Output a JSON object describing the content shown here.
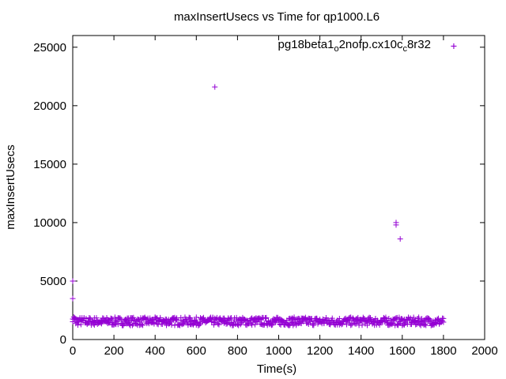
{
  "chart_data": {
    "type": "scatter",
    "title": "maxInsertUsecs vs Time for qp1000.L6",
    "xlabel": "Time(s)",
    "ylabel": "maxInsertUsecs",
    "xlim": [
      0,
      2000
    ],
    "ylim": [
      0,
      26000
    ],
    "xticks": [
      0,
      200,
      400,
      600,
      800,
      1000,
      1200,
      1400,
      1600,
      1800,
      2000
    ],
    "yticks": [
      0,
      5000,
      10000,
      15000,
      20000,
      25000
    ],
    "grid": false,
    "legend_position": "top-right",
    "marker": "plus",
    "color": "#9400d3",
    "series": [
      {
        "name": "pg18beta1_o2nofp.cx10c_c8r32",
        "legend_parts": [
          "pg18beta1",
          "o",
          "2nofp.cx10c",
          "c",
          "8r32"
        ],
        "baseline_band": {
          "x_range": [
            0,
            1800
          ],
          "y_range": [
            1200,
            1900
          ],
          "typical": 1550
        },
        "points": [
          {
            "x": 0,
            "y": 5000
          },
          {
            "x": 0,
            "y": 3500
          },
          {
            "x": 690,
            "y": 21600
          },
          {
            "x": 1570,
            "y": 10000
          },
          {
            "x": 1570,
            "y": 9800
          },
          {
            "x": 1590,
            "y": 8600
          },
          {
            "x": 1850,
            "y": 25100
          }
        ]
      }
    ]
  }
}
